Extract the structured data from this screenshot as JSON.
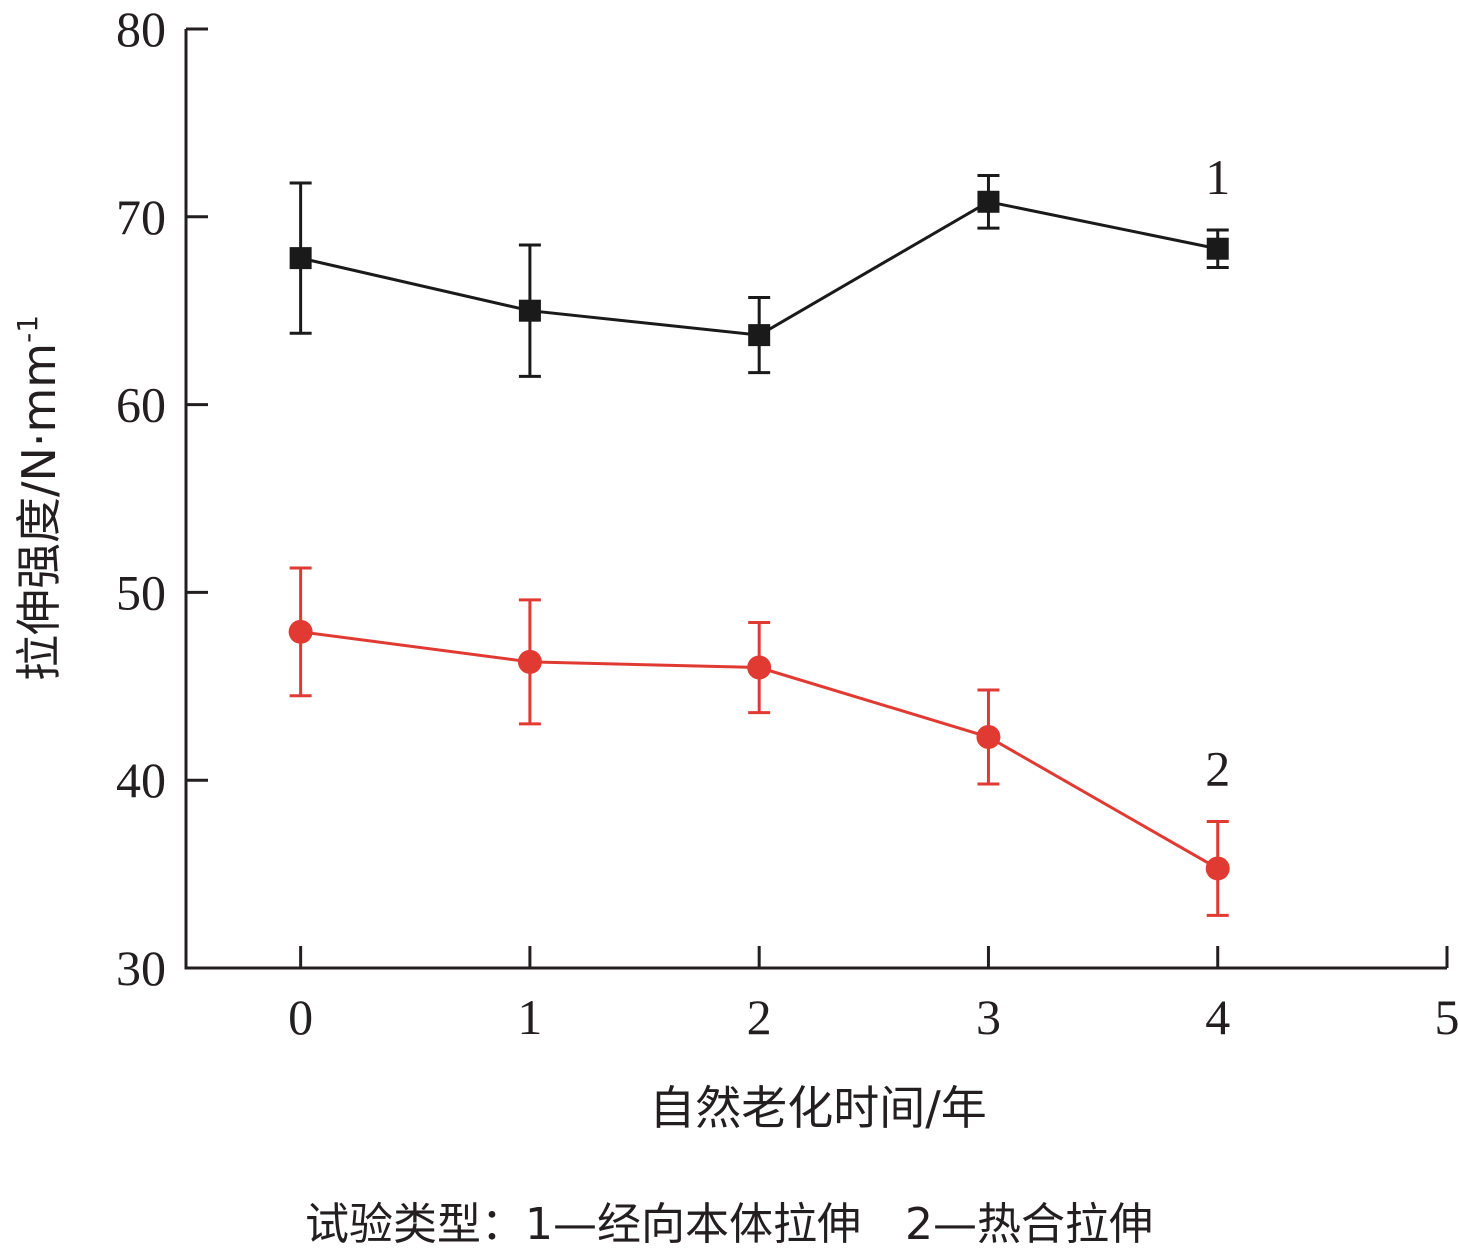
{
  "chart_data": {
    "type": "line",
    "xlabel": "自然老化时间/年",
    "ylabel": "拉伸强度/N·mm",
    "ylabel_sup": "-1",
    "xlim": [
      -0.5,
      5
    ],
    "ylim": [
      30,
      80
    ],
    "x_ticks": [
      0,
      1,
      2,
      3,
      4,
      5
    ],
    "y_ticks": [
      30,
      40,
      50,
      60,
      70,
      80
    ],
    "grid": false,
    "x": [
      0,
      1,
      2,
      3,
      4
    ],
    "series": [
      {
        "label": "1",
        "color": "#1a1a1a",
        "marker": "square",
        "values": [
          67.8,
          65.0,
          63.7,
          70.8,
          68.3
        ],
        "error": [
          4.0,
          3.5,
          2.0,
          1.4,
          1.0
        ]
      },
      {
        "label": "2",
        "color": "#e03a33",
        "marker": "circle",
        "values": [
          47.9,
          46.3,
          46.0,
          42.3,
          35.3
        ],
        "error": [
          3.4,
          3.3,
          2.4,
          2.5,
          2.5
        ]
      }
    ],
    "caption": "试验类型：1—经向本体拉伸　2—热合拉伸"
  }
}
